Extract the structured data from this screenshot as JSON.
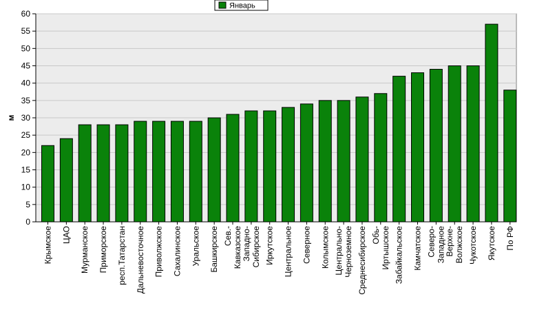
{
  "chart_data": {
    "type": "bar",
    "title": "",
    "xlabel": "",
    "ylabel": "м",
    "ylim": [
      0,
      60
    ],
    "yticks": [
      0,
      5,
      10,
      15,
      20,
      25,
      30,
      35,
      40,
      45,
      50,
      55,
      60
    ],
    "grid": true,
    "legend_position": "top-center",
    "categories": [
      "Крымское",
      "ЦАО",
      "Мурманское",
      "Приморское",
      "респ.Татарстан",
      "Дальневосточное",
      "Приволжское",
      "Сахалинское",
      "Уральское",
      "Башкирское",
      "Сев.-Кавказское",
      "Западно-Сибирское",
      "Иркутское",
      "Центральное",
      "Северное",
      "Колымское",
      "Центрально-Черноземное",
      "Среднесибирское",
      "Обь-Иртышское",
      "Забайкальское",
      "Камчатское",
      "Северо-Западное",
      "Верхне-Волжское",
      "Чукотское",
      "Якутское",
      "По РФ"
    ],
    "category_lines": [
      [
        "Крымское"
      ],
      [
        "ЦАО"
      ],
      [
        "Мурманское"
      ],
      [
        "Приморское"
      ],
      [
        "респ.Татарстан"
      ],
      [
        "Дальневосточное"
      ],
      [
        "Приволжское"
      ],
      [
        "Сахалинское"
      ],
      [
        "Уральское"
      ],
      [
        "Башкирское"
      ],
      [
        "Сев.-",
        "Кавказское"
      ],
      [
        "Западно-",
        "Сибирское"
      ],
      [
        "Иркутское"
      ],
      [
        "Центральное"
      ],
      [
        "Северное"
      ],
      [
        "Колымское"
      ],
      [
        "Центрально-",
        "Черноземное"
      ],
      [
        "Среднесибирское"
      ],
      [
        "Обь-",
        "Иртышское"
      ],
      [
        "Забайкальское"
      ],
      [
        "Камчатское"
      ],
      [
        "Северо-",
        "Западное"
      ],
      [
        "Верхне-",
        "Волжское"
      ],
      [
        "Чукотское"
      ],
      [
        "Якутское"
      ],
      [
        "По РФ"
      ]
    ],
    "series": [
      {
        "name": "Январь",
        "color": "#0a820a",
        "values": [
          22,
          24,
          28,
          28,
          28,
          29,
          29,
          29,
          29,
          30,
          31,
          32,
          32,
          33,
          34,
          35,
          35,
          36,
          37,
          42,
          43,
          44,
          45,
          45,
          57,
          38
        ]
      }
    ]
  }
}
